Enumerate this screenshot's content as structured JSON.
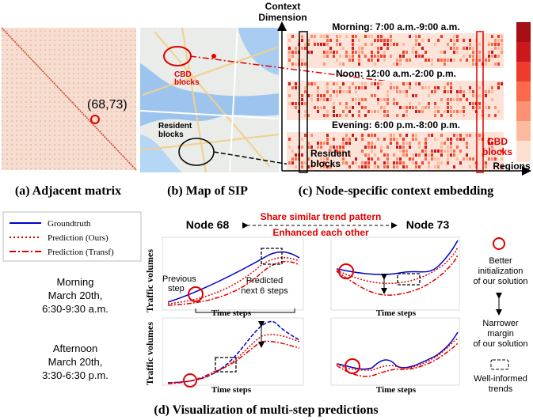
{
  "panel_a": {
    "caption": "(a) Adjacent matrix",
    "annotation": "(68,73)"
  },
  "panel_b": {
    "caption": "(b) Map of SIP",
    "cbd_label": [
      "CBD",
      "blocks"
    ],
    "resident_label": [
      "Resident",
      "blocks"
    ]
  },
  "panel_c": {
    "caption": "(c) Node-specific context embedding",
    "y_axis_label": [
      "Context",
      "Dimension"
    ],
    "x_axis_label": "Regions",
    "bands": [
      "Morning: 7:00 a.m.-9:00 a.m.",
      "Noon: 12:00 a.m.-2:00 p.m.",
      "Evening: 6:00 p.m.-8:00 p.m."
    ],
    "resident_label": [
      "Resident",
      "blocks"
    ],
    "cbd_label": [
      "CBD",
      "blocks"
    ]
  },
  "panel_d": {
    "caption": "(d) Visualization of multi-step predictions",
    "legend": [
      "Groundtruth",
      "Prediction  (Ours)",
      "Prediction  (Transf)"
    ],
    "periods": [
      [
        "Morning",
        "March 20th,",
        "6:30-9:30 a.m."
      ],
      [
        "Afternoon",
        "March 20th,",
        "3:30-6:30 p.m."
      ]
    ],
    "nodes": [
      "Node 68",
      "Node 73"
    ],
    "relation": [
      "Share similar trend pattern",
      "Enhanced each other"
    ],
    "y_axis_label": "Traffic volumes",
    "x_axis_label": "Time steps",
    "previous_step": [
      "Previous",
      "step"
    ],
    "predicted": [
      "Predicted",
      "next 6 steps"
    ],
    "notes": [
      [
        "Better",
        "initialization",
        "of our solution"
      ],
      [
        "Narrower",
        "margin",
        "of our solution"
      ],
      [
        "Well-informed",
        "trends"
      ]
    ]
  }
}
